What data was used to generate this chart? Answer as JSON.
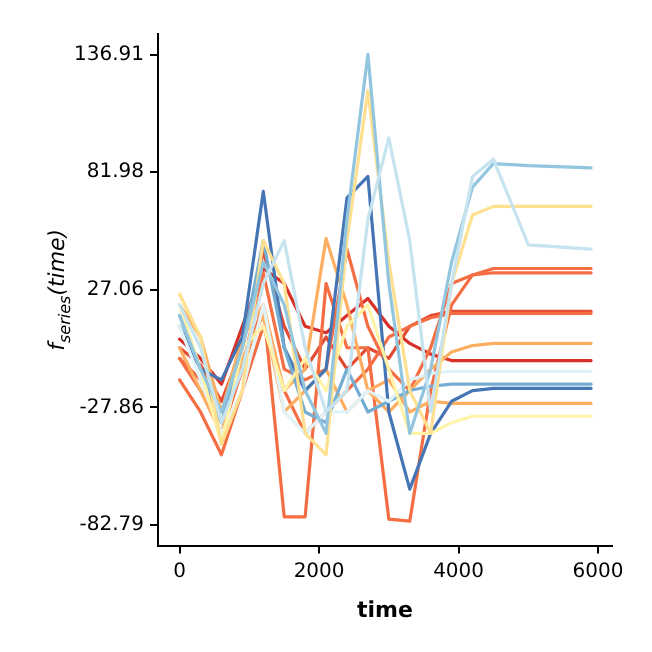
{
  "chart_data": {
    "type": "line",
    "xlabel": "time",
    "ylabel": "f$_{series}$(time)",
    "x": [
      0,
      300,
      600,
      900,
      1200,
      1500,
      1800,
      2100,
      2400,
      2700,
      3000,
      3300,
      3600,
      3900,
      4200,
      4500,
      5000,
      5900
    ],
    "xlim": [
      -310,
      6200
    ],
    "xticks": [
      0,
      2000,
      4000,
      6000
    ],
    "ylim": [
      -92.4,
      146.5
    ],
    "yticks": [
      {
        "value": -82.79,
        "label": "-82.79"
      },
      {
        "value": -27.86,
        "label": "-27.86"
      },
      {
        "value": 27.06,
        "label": "27.06"
      },
      {
        "value": 81.98,
        "label": "81.98"
      },
      {
        "value": 136.91,
        "label": "136.91"
      }
    ],
    "grid": false,
    "legend": false,
    "marker": "none",
    "line_style": "solid",
    "series": [
      {
        "color": "#c6e4f0",
        "values": [
          20,
          0,
          -35,
          -10,
          30,
          50,
          0,
          -30,
          -20,
          60,
          98,
          50,
          -30,
          30,
          80,
          88,
          48,
          46
        ]
      },
      {
        "color": "#92c5de",
        "values": [
          15,
          -10,
          -30,
          0,
          40,
          20,
          -20,
          -40,
          60,
          137,
          30,
          -40,
          -10,
          40,
          75,
          86,
          85,
          84
        ]
      },
      {
        "color": "#fee090",
        "values": [
          25,
          5,
          -45,
          -20,
          50,
          30,
          -40,
          -50,
          50,
          120,
          40,
          -20,
          -40,
          30,
          62,
          66,
          66,
          66
        ]
      },
      {
        "color": "#fff3a8",
        "values": [
          20,
          -10,
          -45,
          0,
          10,
          -20,
          -5,
          -20,
          10,
          20,
          -10,
          -40,
          -40,
          -35,
          -32,
          -32,
          -32,
          -32
        ]
      },
      {
        "color": "#e0f3f8",
        "values": [
          10,
          -15,
          -40,
          -20,
          20,
          -30,
          -40,
          -30,
          -30,
          -20,
          -25,
          -15,
          -12,
          -11,
          -11,
          -11,
          -11,
          -11
        ]
      },
      {
        "color": "#74add1",
        "values": [
          15,
          -10,
          -35,
          0,
          50,
          0,
          -30,
          -35,
          -10,
          -30,
          -25,
          -20,
          -18,
          -17,
          -17,
          -17,
          -17,
          -17
        ]
      },
      {
        "color": "#4575b4",
        "values": [
          10,
          -10,
          -15,
          5,
          73,
          0,
          -20,
          -10,
          70,
          80,
          -30,
          -66,
          -40,
          -25,
          -20,
          -19,
          -19,
          -19
        ]
      },
      {
        "color": "#fdae61",
        "values": [
          20,
          5,
          -30,
          5,
          20,
          -20,
          -10,
          51,
          20,
          -20,
          -30,
          -20,
          -10,
          -2,
          1,
          2,
          2,
          2
        ]
      },
      {
        "color": "#fdae61",
        "values": [
          0,
          -20,
          -40,
          -5,
          15,
          -30,
          -20,
          -10,
          -30,
          -20,
          -15,
          -30,
          -25,
          -26,
          -26,
          -26,
          -26,
          -26
        ]
      },
      {
        "color": "#f46d43",
        "values": [
          -5,
          -20,
          -40,
          -10,
          20,
          -79,
          -79,
          30,
          0,
          0,
          -80,
          -81,
          -20,
          20,
          34,
          37,
          37,
          37
        ]
      },
      {
        "color": "#f46d43",
        "values": [
          -5,
          -15,
          -35,
          -10,
          35,
          -10,
          -15,
          -10,
          46,
          10,
          -10,
          -20,
          0,
          30,
          34,
          35,
          35,
          35
        ]
      },
      {
        "color": "#f46d43",
        "values": [
          -15,
          -30,
          -50,
          -20,
          10,
          -20,
          -40,
          -30,
          -20,
          -10,
          5,
          10,
          14,
          16,
          16,
          16,
          16,
          16
        ]
      },
      {
        "color": "#e34a33",
        "values": [
          0,
          -8,
          -25,
          0,
          45,
          10,
          -10,
          5,
          -10,
          0,
          -5,
          10,
          15,
          17,
          17,
          17,
          17,
          17
        ]
      },
      {
        "color": "#d73027",
        "values": [
          4,
          -5,
          -17,
          10,
          37,
          30,
          10,
          7,
          15,
          23,
          10,
          2,
          -3,
          -6,
          -6,
          -6,
          -6,
          -6
        ]
      }
    ]
  }
}
